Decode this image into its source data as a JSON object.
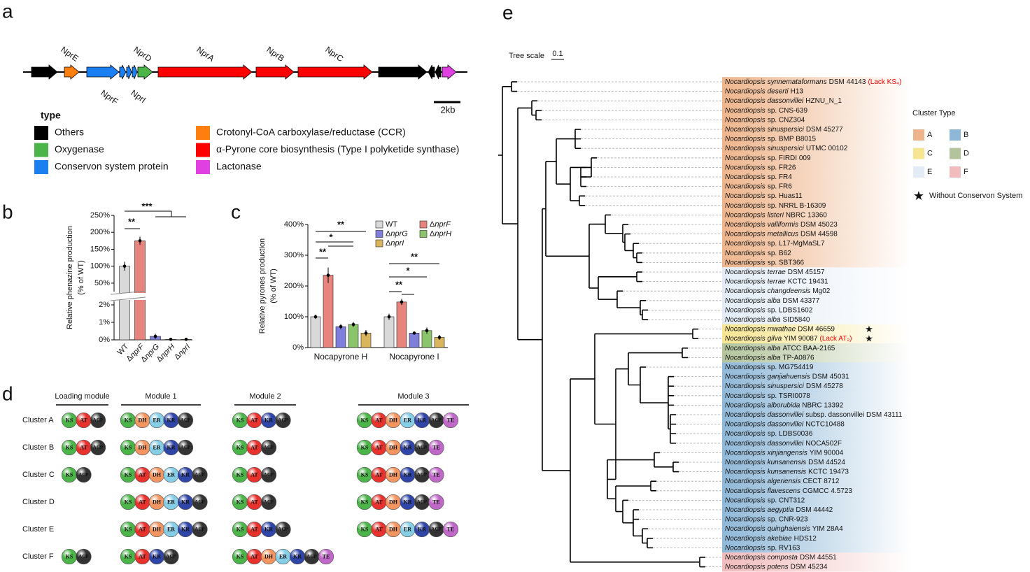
{
  "panel_labels": [
    "a",
    "b",
    "c",
    "d",
    "e"
  ],
  "gene_cluster": {
    "genes": [
      "NprE",
      "NprF",
      "NprD",
      "NprI",
      "NprA",
      "NprB",
      "NprC"
    ],
    "scale": "2kb",
    "legend_title": "type",
    "types": [
      {
        "name": "Others",
        "color": "#000000"
      },
      {
        "name": "Crotonyl-CoA carboxylase/reductase (CCR)",
        "color": "#ff7f0e"
      },
      {
        "name": "Oxygenase",
        "color": "#4cb54a"
      },
      {
        "name": "α-Pyrone core biosynthesis (Type I polyketide synthase)",
        "color": "#ff0000"
      },
      {
        "name": "Conservon system protein",
        "color": "#1a7ff0"
      },
      {
        "name": "Lactonase",
        "color": "#e040e0"
      }
    ]
  },
  "chart_data": [
    {
      "type": "bar",
      "y_label": [
        "Relative phenazine production",
        "(% of WT)"
      ],
      "categories": [
        "WT",
        "ΔnprF",
        "ΔnprG",
        "ΔnprH",
        "ΔnprI"
      ],
      "values": [
        100,
        175,
        0.2,
        0.03,
        0.03
      ],
      "errors": [
        13,
        12,
        0.15,
        0.01,
        0.01
      ],
      "colors": [
        "#d9d9d9",
        "#e8847e",
        "#7f7fdb",
        "#8cc46b",
        "#d9b55e"
      ],
      "ylim": [
        25,
        250
      ],
      "yticks": [
        {
          "value": 50,
          "label": "50%"
        },
        {
          "value": 100,
          "label": "100%"
        },
        {
          "value": 150,
          "label": "150%"
        },
        {
          "value": 200,
          "label": "200%"
        },
        {
          "value": 250,
          "label": "250%"
        }
      ],
      "lower_ylim": [
        0,
        2.2
      ],
      "lower_yticks": [
        {
          "value": 0,
          "label": "0%"
        },
        {
          "value": 1,
          "label": "1%"
        },
        {
          "value": 2,
          "label": "2%"
        }
      ],
      "annotations": [
        "**",
        "***"
      ]
    },
    {
      "type": "bar",
      "y_label": [
        "Relative pyrones production",
        "(% of WT)"
      ],
      "categories": [
        "Nocapyrone H",
        "Nocapyrone I"
      ],
      "series": [
        {
          "name": "WT",
          "color": "#d9d9d9",
          "values": [
            100,
            100
          ],
          "errors": [
            7,
            10
          ]
        },
        {
          "name": "ΔnprF",
          "color": "#e8847e",
          "values": [
            235,
            148
          ],
          "errors": [
            25,
            10
          ]
        },
        {
          "name": "ΔnprG",
          "color": "#7f7fdb",
          "values": [
            68,
            47
          ],
          "errors": [
            8,
            5
          ]
        },
        {
          "name": "ΔnprH",
          "color": "#8cc46b",
          "values": [
            75,
            55
          ],
          "errors": [
            8,
            10
          ]
        },
        {
          "name": "ΔnprI",
          "color": "#d9b55e",
          "values": [
            47,
            33
          ],
          "errors": [
            10,
            8
          ]
        }
      ],
      "ylim": [
        0,
        400
      ],
      "yticks": [
        {
          "value": 0,
          "label": "0%"
        },
        {
          "value": 100,
          "label": "100%"
        },
        {
          "value": 200,
          "label": "200%"
        },
        {
          "value": 300,
          "label": "300%"
        },
        {
          "value": 400,
          "label": "400%"
        }
      ],
      "annotations": [
        "**",
        "*",
        "**",
        "**",
        "*",
        "**"
      ]
    }
  ],
  "modules": {
    "headers": [
      "Loading module",
      "Module 1",
      "Module 2",
      "Module 3"
    ],
    "domain_colors": {
      "KS": "#4cb54a",
      "AT": "#e8322e",
      "ACP": "#333333",
      "DH": "#f29560",
      "ER": "#86cde6",
      "KR": "#2f45a8",
      "TE": "#c068c8"
    },
    "rows": [
      {
        "cluster": "Cluster A",
        "modules": [
          [
            "KS",
            "AT",
            "ACP"
          ],
          [
            "KS",
            "DH",
            "ER",
            "KR",
            "ACP"
          ],
          [
            "KS",
            "AT",
            "KR",
            "ACP"
          ],
          [
            "KS",
            "AT",
            "DH",
            "ER",
            "KR",
            "ACP",
            "TE"
          ]
        ]
      },
      {
        "cluster": "Cluster B",
        "modules": [
          [
            "KS",
            "AT",
            "ACP"
          ],
          [
            "KS",
            "DH",
            "ER",
            "KR",
            "ACP"
          ],
          [
            "KS",
            "AT",
            "ACP"
          ],
          [
            "KS",
            "AT",
            "DH",
            "KR",
            "ACP",
            "TE"
          ]
        ]
      },
      {
        "cluster": "Cluster C",
        "modules": [
          [
            "KS",
            "ACP"
          ],
          [
            "KS",
            "AT",
            "DH",
            "ER",
            "KR",
            "ACP"
          ],
          [
            "KS",
            "AT",
            "ACP"
          ],
          [
            "KS",
            "AT",
            "DH",
            "KR",
            "ACP",
            "TE"
          ]
        ]
      },
      {
        "cluster": "Cluster D",
        "modules": [
          [],
          [
            "KS",
            "AT",
            "DH",
            "ER",
            "KR",
            "ACP"
          ],
          [
            "KS",
            "AT",
            "ACP"
          ],
          [
            "KS",
            "AT",
            "DH",
            "KR",
            "ACP",
            "TE"
          ]
        ]
      },
      {
        "cluster": "Cluster E",
        "modules": [
          [],
          [
            "KS",
            "AT",
            "DH",
            "ER",
            "KR",
            "ACP"
          ],
          [
            "KS",
            "AT",
            "KR",
            "ACP"
          ],
          [
            "KS",
            "AT",
            "DH",
            "ER",
            "KR",
            "ACP",
            "TE"
          ]
        ]
      },
      {
        "cluster": "Cluster F",
        "modules": [
          [
            "KS",
            "ACP"
          ],
          [
            "KS",
            "AT",
            "KR",
            "ACP"
          ],
          [
            "KS",
            "AT",
            "DH",
            "ER",
            "KR",
            "ACP",
            "TE"
          ],
          []
        ]
      }
    ]
  },
  "tree": {
    "scale_label": "Tree scale",
    "scale_value": 0.1,
    "legend_title": "Cluster Type",
    "cluster_types": [
      {
        "name": "A",
        "color": "#eeb58c"
      },
      {
        "name": "B",
        "color": "#8fb8d8"
      },
      {
        "name": "C",
        "color": "#f6e592"
      },
      {
        "name": "D",
        "color": "#b3c49c"
      },
      {
        "name": "E",
        "color": "#e3ecf6"
      },
      {
        "name": "F",
        "color": "#f1bcbd"
      }
    ],
    "star_label": "Without Conservon System",
    "leaves": [
      {
        "species": "Nocardiopsis synnemataformans",
        "strain": "DSM 44143",
        "note": "(Lack KS₄)",
        "cluster": "A"
      },
      {
        "species": "Nocardiopsis deserti",
        "strain": "H13",
        "cluster": "A"
      },
      {
        "species": "Nocardiopsis dassonvillei",
        "strain": "HZNU_N_1",
        "cluster": "A"
      },
      {
        "species": "Nocardiopsis",
        "strain": "sp. CNS-639",
        "cluster": "A"
      },
      {
        "species": "Nocardiopsis",
        "strain": "sp. CNZ304",
        "cluster": "A"
      },
      {
        "species": "Nocardiopsis sinuspersici",
        "strain": "DSM 45277",
        "cluster": "A"
      },
      {
        "species": "Nocardiopsis",
        "strain": "sp. BMP B8015",
        "cluster": "A"
      },
      {
        "species": "Nocardiopsis sinuspersici",
        "strain": "UTMC 00102",
        "cluster": "A"
      },
      {
        "species": "Nocardiopsis",
        "strain": "sp. FIRDI 009",
        "cluster": "A"
      },
      {
        "species": "Nocardiopsis",
        "strain": "sp. FR26",
        "cluster": "A"
      },
      {
        "species": "Nocardiopsis",
        "strain": "sp. FR4",
        "cluster": "A"
      },
      {
        "species": "Nocardiopsis",
        "strain": "sp. FR6",
        "cluster": "A"
      },
      {
        "species": "Nocardiopsis",
        "strain": "sp. Huas11",
        "cluster": "A"
      },
      {
        "species": "Nocardiopsis",
        "strain": "sp. NRRL B-16309",
        "cluster": "A"
      },
      {
        "species": "Nocardiopsis listeri",
        "strain": "NBRC 13360",
        "cluster": "A"
      },
      {
        "species": "Nocardiopsis valliformis",
        "strain": "DSM 45023",
        "cluster": "A"
      },
      {
        "species": "Nocardiopsis metallicus",
        "strain": "DSM 44598",
        "cluster": "A"
      },
      {
        "species": "Nocardiopsis",
        "strain": "sp. L17-MgMaSL7",
        "cluster": "A"
      },
      {
        "species": "Nocardiopsis",
        "strain": "sp. B62",
        "cluster": "A"
      },
      {
        "species": "Nocardiopsis",
        "strain": "sp. SBT366",
        "cluster": "A"
      },
      {
        "species": "Nocardiopsis terrae",
        "strain": "DSM 45157",
        "cluster": "E"
      },
      {
        "species": "Nocardiopsis terrae",
        "strain": "KCTC 19431",
        "cluster": "E"
      },
      {
        "species": "Nocardiopsis changdeensis",
        "strain": "Mg02",
        "cluster": "E"
      },
      {
        "species": "Nocardiopsis alba",
        "strain": "DSM 43377",
        "cluster": "E"
      },
      {
        "species": "Nocardiopsis",
        "strain": "sp. LDBS1602",
        "cluster": "E"
      },
      {
        "species": "Nocardiopsis alba",
        "strain": "SID5840",
        "cluster": "E"
      },
      {
        "species": "Nocardiopsis mwathae",
        "strain": "DSM 46659",
        "cluster": "C",
        "without_conservon": true
      },
      {
        "species": "Nocardiopsis gilva",
        "strain": "YIM 90087",
        "note": "(Lack AT₂)",
        "cluster": "C",
        "without_conservon": true
      },
      {
        "species": "Nocardiopsis alba",
        "strain": "ATCC BAA-2165",
        "cluster": "D"
      },
      {
        "species": "Nocardiopsis alba",
        "strain": "TP-A0876",
        "cluster": "D"
      },
      {
        "species": "Nocardiopsis",
        "strain": "sp. MG754419",
        "cluster": "B"
      },
      {
        "species": "Nocardiopsis ganjiahuensis",
        "strain": "DSM 45031",
        "cluster": "B"
      },
      {
        "species": "Nocardiopsis sinuspersici",
        "strain": "DSM 45278",
        "cluster": "B"
      },
      {
        "species": "Nocardiopsis",
        "strain": "sp. TSRI0078",
        "cluster": "B"
      },
      {
        "species": "Nocardiopsis alborubida",
        "strain": "NBRC 13392",
        "cluster": "B"
      },
      {
        "species": "Nocardiopsis dassonvillei",
        "strain": "subsp. dassonvillei DSM 43111",
        "cluster": "B"
      },
      {
        "species": "Nocardiopsis dassonvillei",
        "strain": "NCTC10488",
        "cluster": "B"
      },
      {
        "species": "Nocardiopsis",
        "strain": "sp. LDBS0036",
        "cluster": "B"
      },
      {
        "species": "Nocardiopsis dassonvillei",
        "strain": "NOCA502F",
        "cluster": "B"
      },
      {
        "species": "Nocardiopsis xinjiangensis",
        "strain": "YIM 90004",
        "cluster": "B"
      },
      {
        "species": "Nocardiopsis kunsanensis",
        "strain": "DSM 44524",
        "cluster": "B"
      },
      {
        "species": "Nocardiopsis kunsanensis",
        "strain": "KCTC 19473",
        "cluster": "B"
      },
      {
        "species": "Nocardiopsis algeriensis",
        "strain": "CECT 8712",
        "cluster": "B"
      },
      {
        "species": "Nocardiopsis flavescens",
        "strain": "CGMCC 4.5723",
        "cluster": "B"
      },
      {
        "species": "Nocardiopsis",
        "strain": "sp. CNT312",
        "cluster": "B"
      },
      {
        "species": "Nocardiopsis aegyptia",
        "strain": "DSM 44442",
        "cluster": "B"
      },
      {
        "species": "Nocardiopsis",
        "strain": "sp. CNR-923",
        "cluster": "B"
      },
      {
        "species": "Nocardiopsis quinghaiensis",
        "strain": "YIM 28A4",
        "cluster": "B"
      },
      {
        "species": "Nocardiopsis akebiae",
        "strain": "HDS12",
        "cluster": "B"
      },
      {
        "species": "Nocardiopsis",
        "strain": "sp. RV163",
        "cluster": "B"
      },
      {
        "species": "Nocardiopsis composta",
        "strain": "DSM 44551",
        "cluster": "F"
      },
      {
        "species": "Nocardiopsis potens",
        "strain": "DSM 45234",
        "cluster": "F"
      }
    ]
  }
}
